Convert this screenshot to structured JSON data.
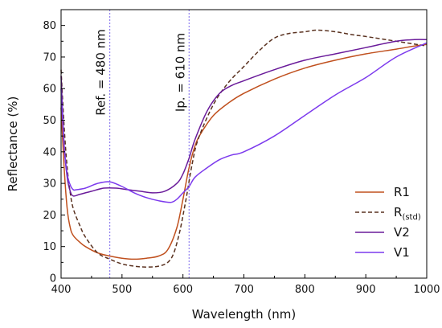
{
  "chart_data": {
    "type": "line",
    "xlabel": "Wavelength (nm)",
    "ylabel": "Reflectance (%)",
    "xlim": [
      400,
      1000
    ],
    "ylim": [
      0,
      85
    ],
    "xticks": [
      400,
      500,
      600,
      700,
      800,
      900,
      1000
    ],
    "yticks": [
      0,
      10,
      20,
      30,
      40,
      50,
      60,
      70,
      80
    ],
    "grid": false,
    "legend": {
      "placement": "lower-right",
      "items": [
        {
          "label": "R1",
          "sub": ""
        },
        {
          "label": "R",
          "sub": "(std)"
        },
        {
          "label": "V2",
          "sub": ""
        },
        {
          "label": "V1",
          "sub": ""
        }
      ]
    },
    "annotations": [
      {
        "text": "Ref. = 480 nm",
        "x": 480,
        "color": "#7b68ee"
      },
      {
        "text": "Ip. = 610 nm",
        "x": 610,
        "color": "#7b68ee"
      }
    ],
    "series": [
      {
        "name": "R1",
        "color": "#c0501e",
        "dash": "solid",
        "x": [
          400,
          405,
          410,
          415,
          420,
          430,
          440,
          460,
          480,
          500,
          520,
          540,
          560,
          575,
          590,
          600,
          610,
          620,
          630,
          650,
          675,
          700,
          750,
          800,
          850,
          900,
          950,
          980,
          1000
        ],
        "y": [
          54,
          35,
          22,
          16,
          13.5,
          11.5,
          10,
          8,
          7,
          6.3,
          6,
          6.3,
          7,
          9,
          16,
          25,
          35,
          42,
          46,
          51.5,
          55.5,
          58.5,
          63,
          66.5,
          69,
          71,
          72.5,
          73.5,
          74
        ]
      },
      {
        "name": "R(std)",
        "color": "#5a3220",
        "dash": "dashed",
        "x": [
          400,
          405,
          410,
          415,
          420,
          430,
          440,
          460,
          480,
          500,
          520,
          540,
          560,
          575,
          585,
          595,
          605,
          615,
          625,
          650,
          675,
          700,
          725,
          750,
          775,
          800,
          820,
          850,
          880,
          900,
          950,
          1000
        ],
        "y": [
          66,
          48,
          35,
          27,
          22,
          17,
          13,
          8,
          6,
          4.5,
          3.8,
          3.5,
          3.8,
          5,
          8,
          15,
          25,
          36,
          44,
          55,
          62,
          67,
          72,
          76,
          77.5,
          78,
          78.5,
          78,
          77,
          76.5,
          75,
          73.5
        ]
      },
      {
        "name": "V2",
        "color": "#6a1b9a",
        "dash": "solid",
        "x": [
          400,
          405,
          410,
          415,
          420,
          430,
          450,
          470,
          490,
          510,
          530,
          550,
          570,
          590,
          600,
          610,
          620,
          640,
          660,
          680,
          700,
          750,
          800,
          850,
          900,
          950,
          980,
          1000
        ],
        "y": [
          64,
          42,
          32,
          27.5,
          26,
          26.5,
          27.5,
          28.5,
          28.5,
          28,
          27.5,
          27,
          27.5,
          30,
          33,
          38,
          44,
          53,
          58.5,
          61,
          62.5,
          66,
          69,
          71,
          73,
          75,
          75.5,
          75.5
        ]
      },
      {
        "name": "V1",
        "color": "#7c3aed",
        "dash": "solid",
        "x": [
          400,
          405,
          410,
          415,
          420,
          425,
          440,
          460,
          480,
          500,
          520,
          540,
          560,
          580,
          590,
          600,
          610,
          620,
          640,
          660,
          680,
          700,
          750,
          800,
          850,
          900,
          950,
          1000
        ],
        "y": [
          60,
          42,
          33,
          29.5,
          28,
          28,
          28.5,
          30,
          30.5,
          29,
          27,
          25.5,
          24.5,
          24,
          25,
          27,
          29,
          32,
          35,
          37.5,
          39,
          40,
          45,
          51.5,
          58,
          63.5,
          70,
          74.5
        ]
      }
    ]
  }
}
